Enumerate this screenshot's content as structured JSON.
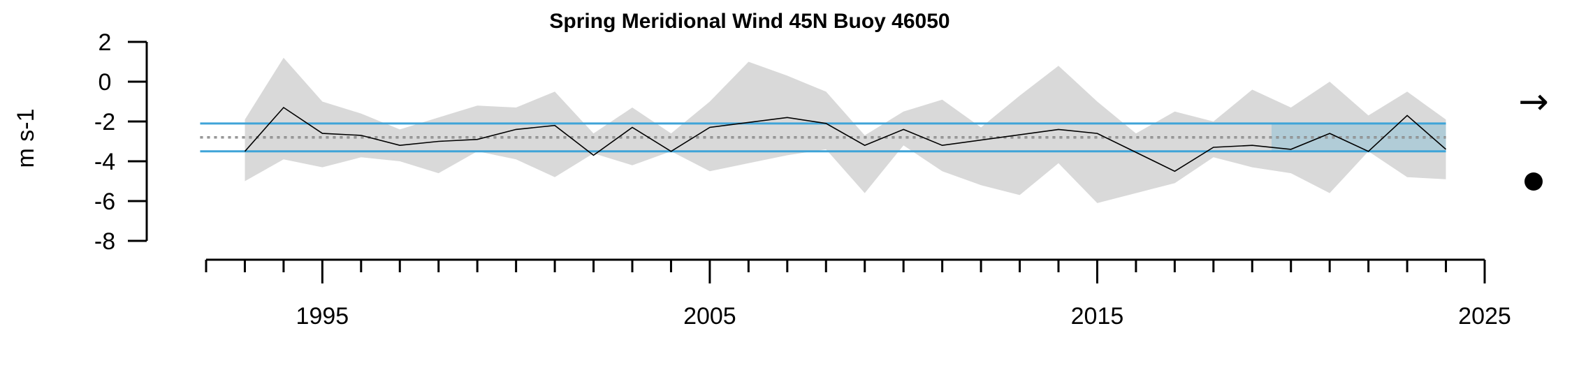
{
  "chart_data": {
    "type": "line",
    "title": "Spring Meridional Wind 45N Buoy 46050",
    "ylabel": "m s-1",
    "xlabel": "",
    "xlim": [
      1992,
      2025
    ],
    "ylim": [
      -8,
      2
    ],
    "y_ticks": [
      "2",
      "0",
      "-2",
      "-4",
      "-6",
      "-8"
    ],
    "x_tick_labels": [
      "1995",
      "2005",
      "2015",
      "2025"
    ],
    "grid": false,
    "series": [
      {
        "values_x": [
          1993,
          1994,
          1995,
          1996,
          1997,
          1998,
          1999,
          2000,
          2001,
          2002,
          2003,
          2004,
          2005,
          2007,
          2008,
          2009,
          2010,
          2011,
          2014,
          2015,
          2017,
          2018,
          2019,
          2020,
          2021,
          2022,
          2023,
          2024
        ],
        "values_y": [
          -3.5,
          -1.3,
          -2.6,
          -2.7,
          -3.2,
          -3.0,
          -2.9,
          -2.4,
          -2.2,
          -3.7,
          -2.3,
          -3.5,
          -2.3,
          -1.8,
          -2.1,
          -3.2,
          -2.4,
          -3.2,
          -2.4,
          -2.6,
          -4.5,
          -3.3,
          -3.2,
          -3.4,
          -2.6,
          -3.5,
          -1.7,
          -3.4
        ]
      }
    ],
    "uncertainty_band": {
      "x": [
        1993,
        1994,
        1995,
        1996,
        1997,
        1998,
        1999,
        2000,
        2001,
        2002,
        2003,
        2004,
        2005,
        2006,
        2007,
        2008,
        2009,
        2010,
        2011,
        2012,
        2013,
        2014,
        2015,
        2016,
        2017,
        2018,
        2019,
        2020,
        2021,
        2022,
        2023,
        2024
      ],
      "upper": [
        -1.9,
        1.2,
        -1.0,
        -1.6,
        -2.4,
        -1.8,
        -1.2,
        -1.3,
        -0.5,
        -2.6,
        -1.3,
        -2.6,
        -1.0,
        1.0,
        0.3,
        -0.5,
        -2.7,
        -1.5,
        -0.9,
        -2.3,
        -0.7,
        0.8,
        -1.0,
        -2.6,
        -1.5,
        -2.0,
        -0.4,
        -1.3,
        0.0,
        -1.7,
        -0.5,
        -1.9
      ],
      "lower": [
        -5.0,
        -3.9,
        -4.3,
        -3.8,
        -4.0,
        -4.6,
        -3.5,
        -3.9,
        -4.8,
        -3.6,
        -4.2,
        -3.5,
        -4.5,
        -4.1,
        -3.7,
        -3.4,
        -5.6,
        -3.2,
        -4.5,
        -5.2,
        -5.7,
        -4.1,
        -6.1,
        -5.6,
        -5.1,
        -3.8,
        -4.3,
        -4.6,
        -5.6,
        -3.5,
        -4.8,
        -4.9
      ]
    },
    "mean": -2.8,
    "upper_sd": -2.1,
    "lower_sd": -3.5,
    "recent_period": [
      2019.5,
      2024
    ],
    "trend_symbol": "→",
    "mean_symbol": "●",
    "colors": {
      "band": "#d9d9d9",
      "line": "#000000",
      "sd_lines": "#3fa4d8",
      "recent_box": "#a9c9d6",
      "mean_dotted": "#999999"
    }
  }
}
